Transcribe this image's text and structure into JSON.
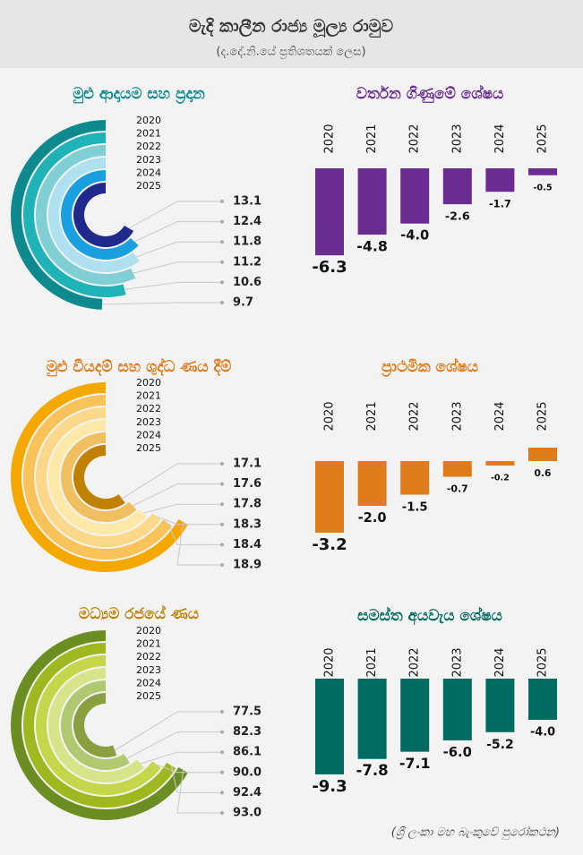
{
  "title": "මැදි කාලීන රාජ්‍ය මූල්‍ය රාමුව",
  "subtitle": "(ද.දේ.නි.යේ ප්‍රතිශතයක් ලෙස)",
  "source": "(ශ්‍රී ලංකා මහ බැංකුවේ පුරෝකථන)",
  "chart_data": [
    {
      "type": "radial_bar",
      "title": "මුළු ආදායම සහ ප්‍රදාන",
      "title_color": "#0e8a8e",
      "categories": [
        "2020",
        "2021",
        "2022",
        "2023",
        "2024",
        "2025"
      ],
      "values": [
        9.7,
        10.6,
        11.2,
        11.8,
        12.4,
        13.1
      ],
      "value_labels": [
        "9.7",
        "10.6",
        "11.2",
        "11.8",
        "12.4",
        "13.1"
      ],
      "colors": [
        "#0e8a8e",
        "#1fb3b8",
        "#7fcfd4",
        "#aee0f0",
        "#1aa0e0",
        "#1f2a8c"
      ]
    },
    {
      "type": "bar",
      "title": "වර්තන ගිණුමේ ශේෂය",
      "title_color": "#6a2c91",
      "categories": [
        "2020",
        "2021",
        "2022",
        "2023",
        "2024",
        "2025"
      ],
      "values": [
        -6.3,
        -4.8,
        -4.0,
        -2.6,
        -1.7,
        -0.5
      ],
      "value_labels": [
        "-6.3",
        "-4.8",
        "-4.0",
        "-2.6",
        "-1.7",
        "-0.5"
      ],
      "color": "#6a2c91",
      "ylim": [
        -7,
        0
      ]
    },
    {
      "type": "radial_bar",
      "title": "මුළු වියදම් සහ ශුද්ධ ණය දීම්",
      "title_color": "#e07b1a",
      "categories": [
        "2020",
        "2021",
        "2022",
        "2023",
        "2024",
        "2025"
      ],
      "values": [
        18.9,
        18.4,
        18.3,
        17.8,
        17.6,
        17.1
      ],
      "value_labels": [
        "18.9",
        "18.4",
        "18.3",
        "17.8",
        "17.6",
        "17.1"
      ],
      "colors": [
        "#f5a800",
        "#f9c35a",
        "#fcd98a",
        "#fde9a8",
        "#f0c060",
        "#c08000"
      ]
    },
    {
      "type": "bar",
      "title": "ප්‍රාථමික ශේෂය",
      "title_color": "#e07b1a",
      "categories": [
        "2020",
        "2021",
        "2022",
        "2023",
        "2024",
        "2025"
      ],
      "values": [
        -3.2,
        -2.0,
        -1.5,
        -0.7,
        -0.2,
        0.6
      ],
      "value_labels": [
        "-3.2",
        "-2.0",
        "-1.5",
        "-0.7",
        "-0.2",
        "0.6"
      ],
      "color": "#e07b1a",
      "ylim": [
        -4,
        1
      ]
    },
    {
      "type": "radial_bar",
      "title": "මධ්‍යම රජයේ ණය",
      "title_color": "#c08000",
      "categories": [
        "2020",
        "2021",
        "2022",
        "2023",
        "2024",
        "2025"
      ],
      "values": [
        93.0,
        92.4,
        90.0,
        86.1,
        82.3,
        77.5
      ],
      "value_labels": [
        "93.0",
        "92.4",
        "90.0",
        "86.1",
        "82.3",
        "77.5"
      ],
      "colors": [
        "#6b8e23",
        "#a0b820",
        "#c5d64a",
        "#d8e48a",
        "#b0c870",
        "#8aa040"
      ]
    },
    {
      "type": "bar",
      "title": "සමස්ත අයවැය ශේෂය",
      "title_color": "#006b60",
      "categories": [
        "2020",
        "2021",
        "2022",
        "2023",
        "2024",
        "2025"
      ],
      "values": [
        -9.3,
        -7.8,
        -7.1,
        -6.0,
        -5.2,
        -4.0
      ],
      "value_labels": [
        "-9.3",
        "-7.8",
        "-7.1",
        "-6.0",
        "-5.2",
        "-4.0"
      ],
      "color": "#006b60",
      "ylim": [
        -10,
        0
      ]
    }
  ]
}
